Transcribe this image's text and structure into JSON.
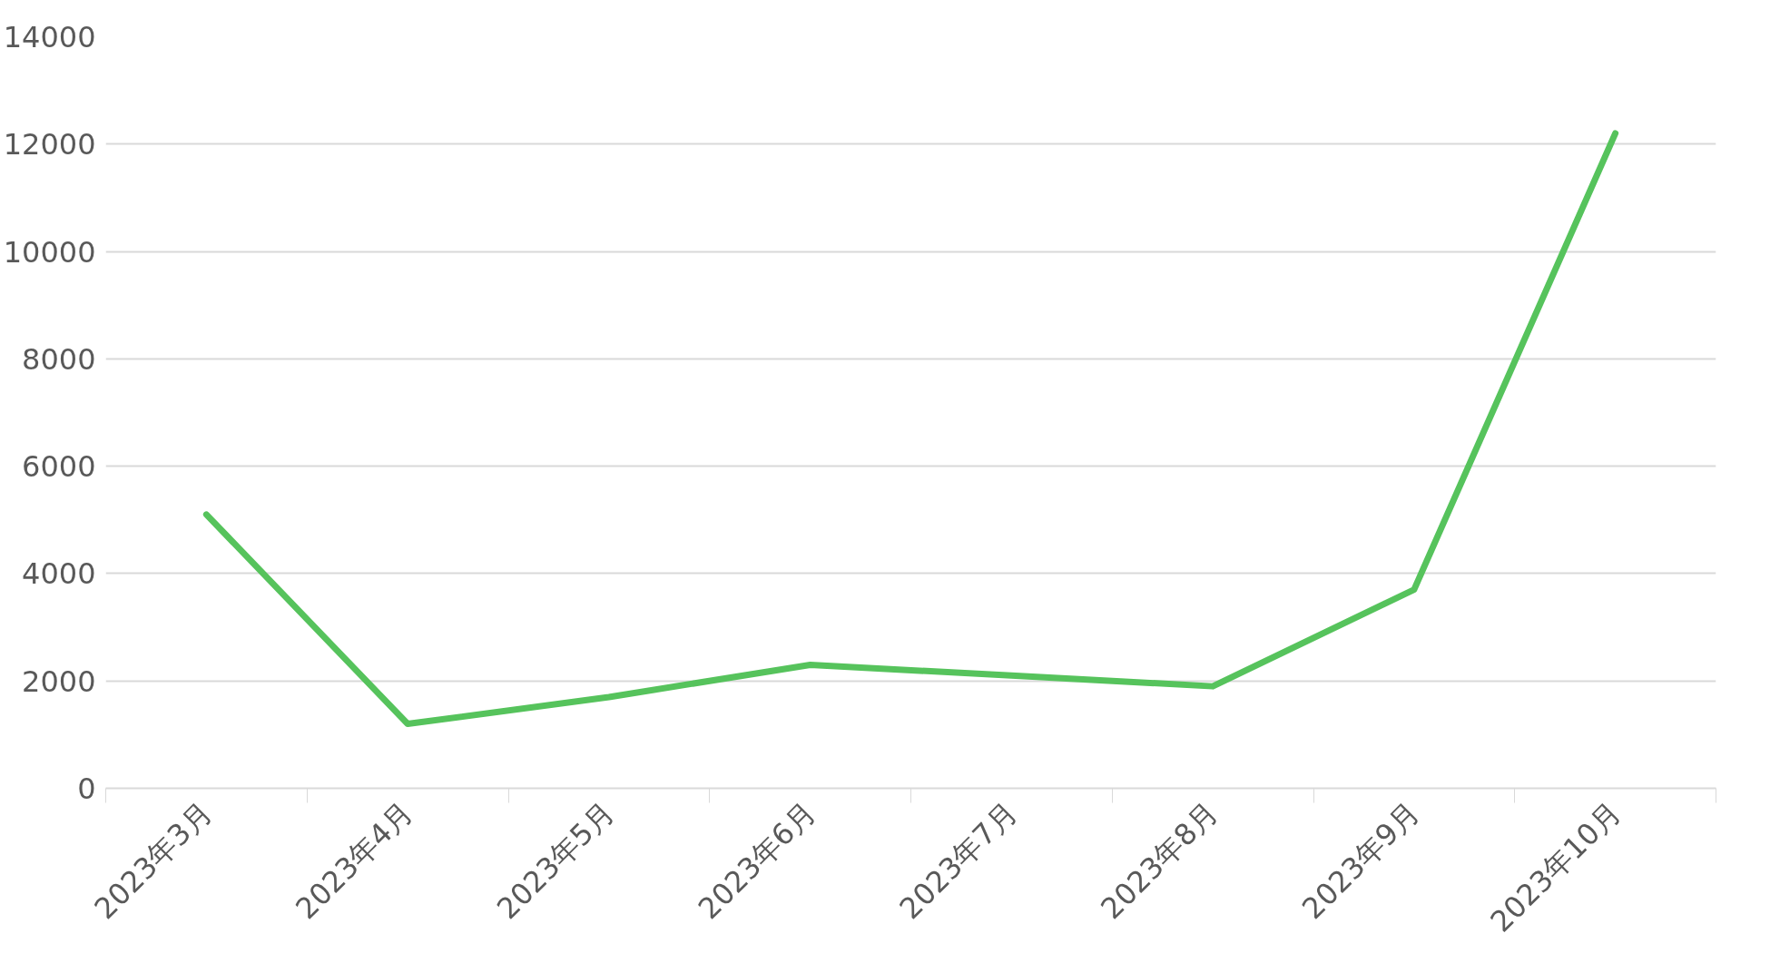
{
  "chart_data": {
    "type": "line",
    "categories": [
      "2023年3月",
      "2023年4月",
      "2023年5月",
      "2023年6月",
      "2023年7月",
      "2023年8月",
      "2023年9月",
      "2023年10月"
    ],
    "series": [
      {
        "color": "#56c35c",
        "values": [
          5100,
          1200,
          1700,
          2300,
          2100,
          1900,
          3700,
          12200
        ]
      }
    ],
    "ylim": [
      0,
      14000
    ],
    "yticks": [
      0,
      2000,
      4000,
      6000,
      8000,
      10000,
      12000,
      14000
    ],
    "grid": "y"
  }
}
